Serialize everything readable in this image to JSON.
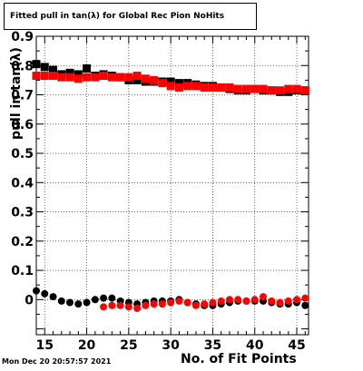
{
  "chart_data": {
    "type": "scatter",
    "title": "Fitted pull in tan(λ) for Global Rec Pion NoHits",
    "xlabel": "No. of Fit Points",
    "ylabel": "pull in tan(λ)",
    "xlim": [
      14,
      46.4
    ],
    "ylim": [
      -0.12,
      0.9
    ],
    "x_ticks": [
      15,
      20,
      25,
      30,
      35,
      40,
      45
    ],
    "y_ticks": [
      0,
      0.1,
      0.2,
      0.3,
      0.4,
      0.5,
      0.6,
      0.7,
      0.8,
      0.9
    ],
    "y_tick_labels": [
      "0",
      "0.1",
      "0.2",
      "0.3",
      "0.4",
      "0.5",
      "0.6",
      "0.7",
      "0.8",
      "0.9"
    ],
    "grid": true,
    "series": [
      {
        "color": "#000000",
        "marker": "square",
        "x": [
          14,
          15,
          16,
          17,
          18,
          19,
          20,
          21,
          22,
          23,
          24,
          25,
          26,
          27,
          28,
          29,
          30,
          31,
          32,
          33,
          34,
          35,
          36,
          37,
          38,
          39,
          40,
          41,
          42,
          43,
          44,
          45,
          46
        ],
        "values": [
          0.805,
          0.795,
          0.785,
          0.77,
          0.775,
          0.77,
          0.79,
          0.765,
          0.77,
          0.765,
          0.76,
          0.75,
          0.75,
          0.745,
          0.745,
          0.745,
          0.745,
          0.74,
          0.74,
          0.735,
          0.73,
          0.73,
          0.725,
          0.72,
          0.715,
          0.715,
          0.72,
          0.715,
          0.715,
          0.71,
          0.71,
          0.715,
          0.715
        ]
      },
      {
        "color": "#ff0000",
        "marker": "square",
        "x": [
          14,
          15,
          16,
          17,
          18,
          19,
          20,
          21,
          22,
          23,
          24,
          25,
          26,
          27,
          28,
          29,
          30,
          31,
          32,
          33,
          34,
          35,
          36,
          37,
          38,
          39,
          40,
          41,
          42,
          43,
          44,
          45,
          46
        ],
        "values": [
          0.765,
          0.765,
          0.765,
          0.76,
          0.76,
          0.755,
          0.76,
          0.76,
          0.765,
          0.76,
          0.76,
          0.76,
          0.765,
          0.755,
          0.75,
          0.74,
          0.73,
          0.725,
          0.73,
          0.73,
          0.725,
          0.725,
          0.725,
          0.725,
          0.72,
          0.72,
          0.72,
          0.72,
          0.715,
          0.715,
          0.72,
          0.72,
          0.715
        ]
      },
      {
        "color": "#000000",
        "marker": "circle",
        "x": [
          14,
          15,
          16,
          17,
          18,
          19,
          20,
          21,
          22,
          23,
          24,
          25,
          26,
          27,
          28,
          29,
          30,
          31,
          32,
          33,
          34,
          35,
          36,
          37,
          38,
          39,
          40,
          41,
          42,
          43,
          44,
          45,
          46
        ],
        "values": [
          0.03,
          0.02,
          0.01,
          -0.005,
          -0.01,
          -0.015,
          -0.01,
          0.0,
          0.005,
          0.005,
          -0.005,
          -0.01,
          -0.015,
          -0.01,
          -0.005,
          -0.005,
          -0.005,
          0.0,
          -0.01,
          -0.015,
          -0.02,
          -0.02,
          -0.015,
          -0.01,
          -0.005,
          -0.005,
          -0.005,
          -0.005,
          -0.01,
          -0.015,
          -0.015,
          -0.01,
          -0.02
        ]
      },
      {
        "color": "#ff0000",
        "marker": "circle",
        "x": [
          22,
          23,
          24,
          25,
          26,
          27,
          28,
          29,
          30,
          31,
          32,
          33,
          34,
          35,
          36,
          37,
          38,
          39,
          40,
          41,
          42,
          43,
          44,
          45,
          46
        ],
        "values": [
          -0.025,
          -0.02,
          -0.02,
          -0.025,
          -0.03,
          -0.02,
          -0.015,
          -0.015,
          -0.01,
          -0.005,
          -0.01,
          -0.02,
          -0.015,
          -0.01,
          -0.005,
          0.0,
          0.0,
          -0.005,
          0.0,
          0.01,
          -0.005,
          -0.01,
          -0.005,
          0.0,
          0.005
        ]
      }
    ]
  },
  "footer": {
    "timestamp": "Mon Dec 20 20:57:57 2021"
  }
}
